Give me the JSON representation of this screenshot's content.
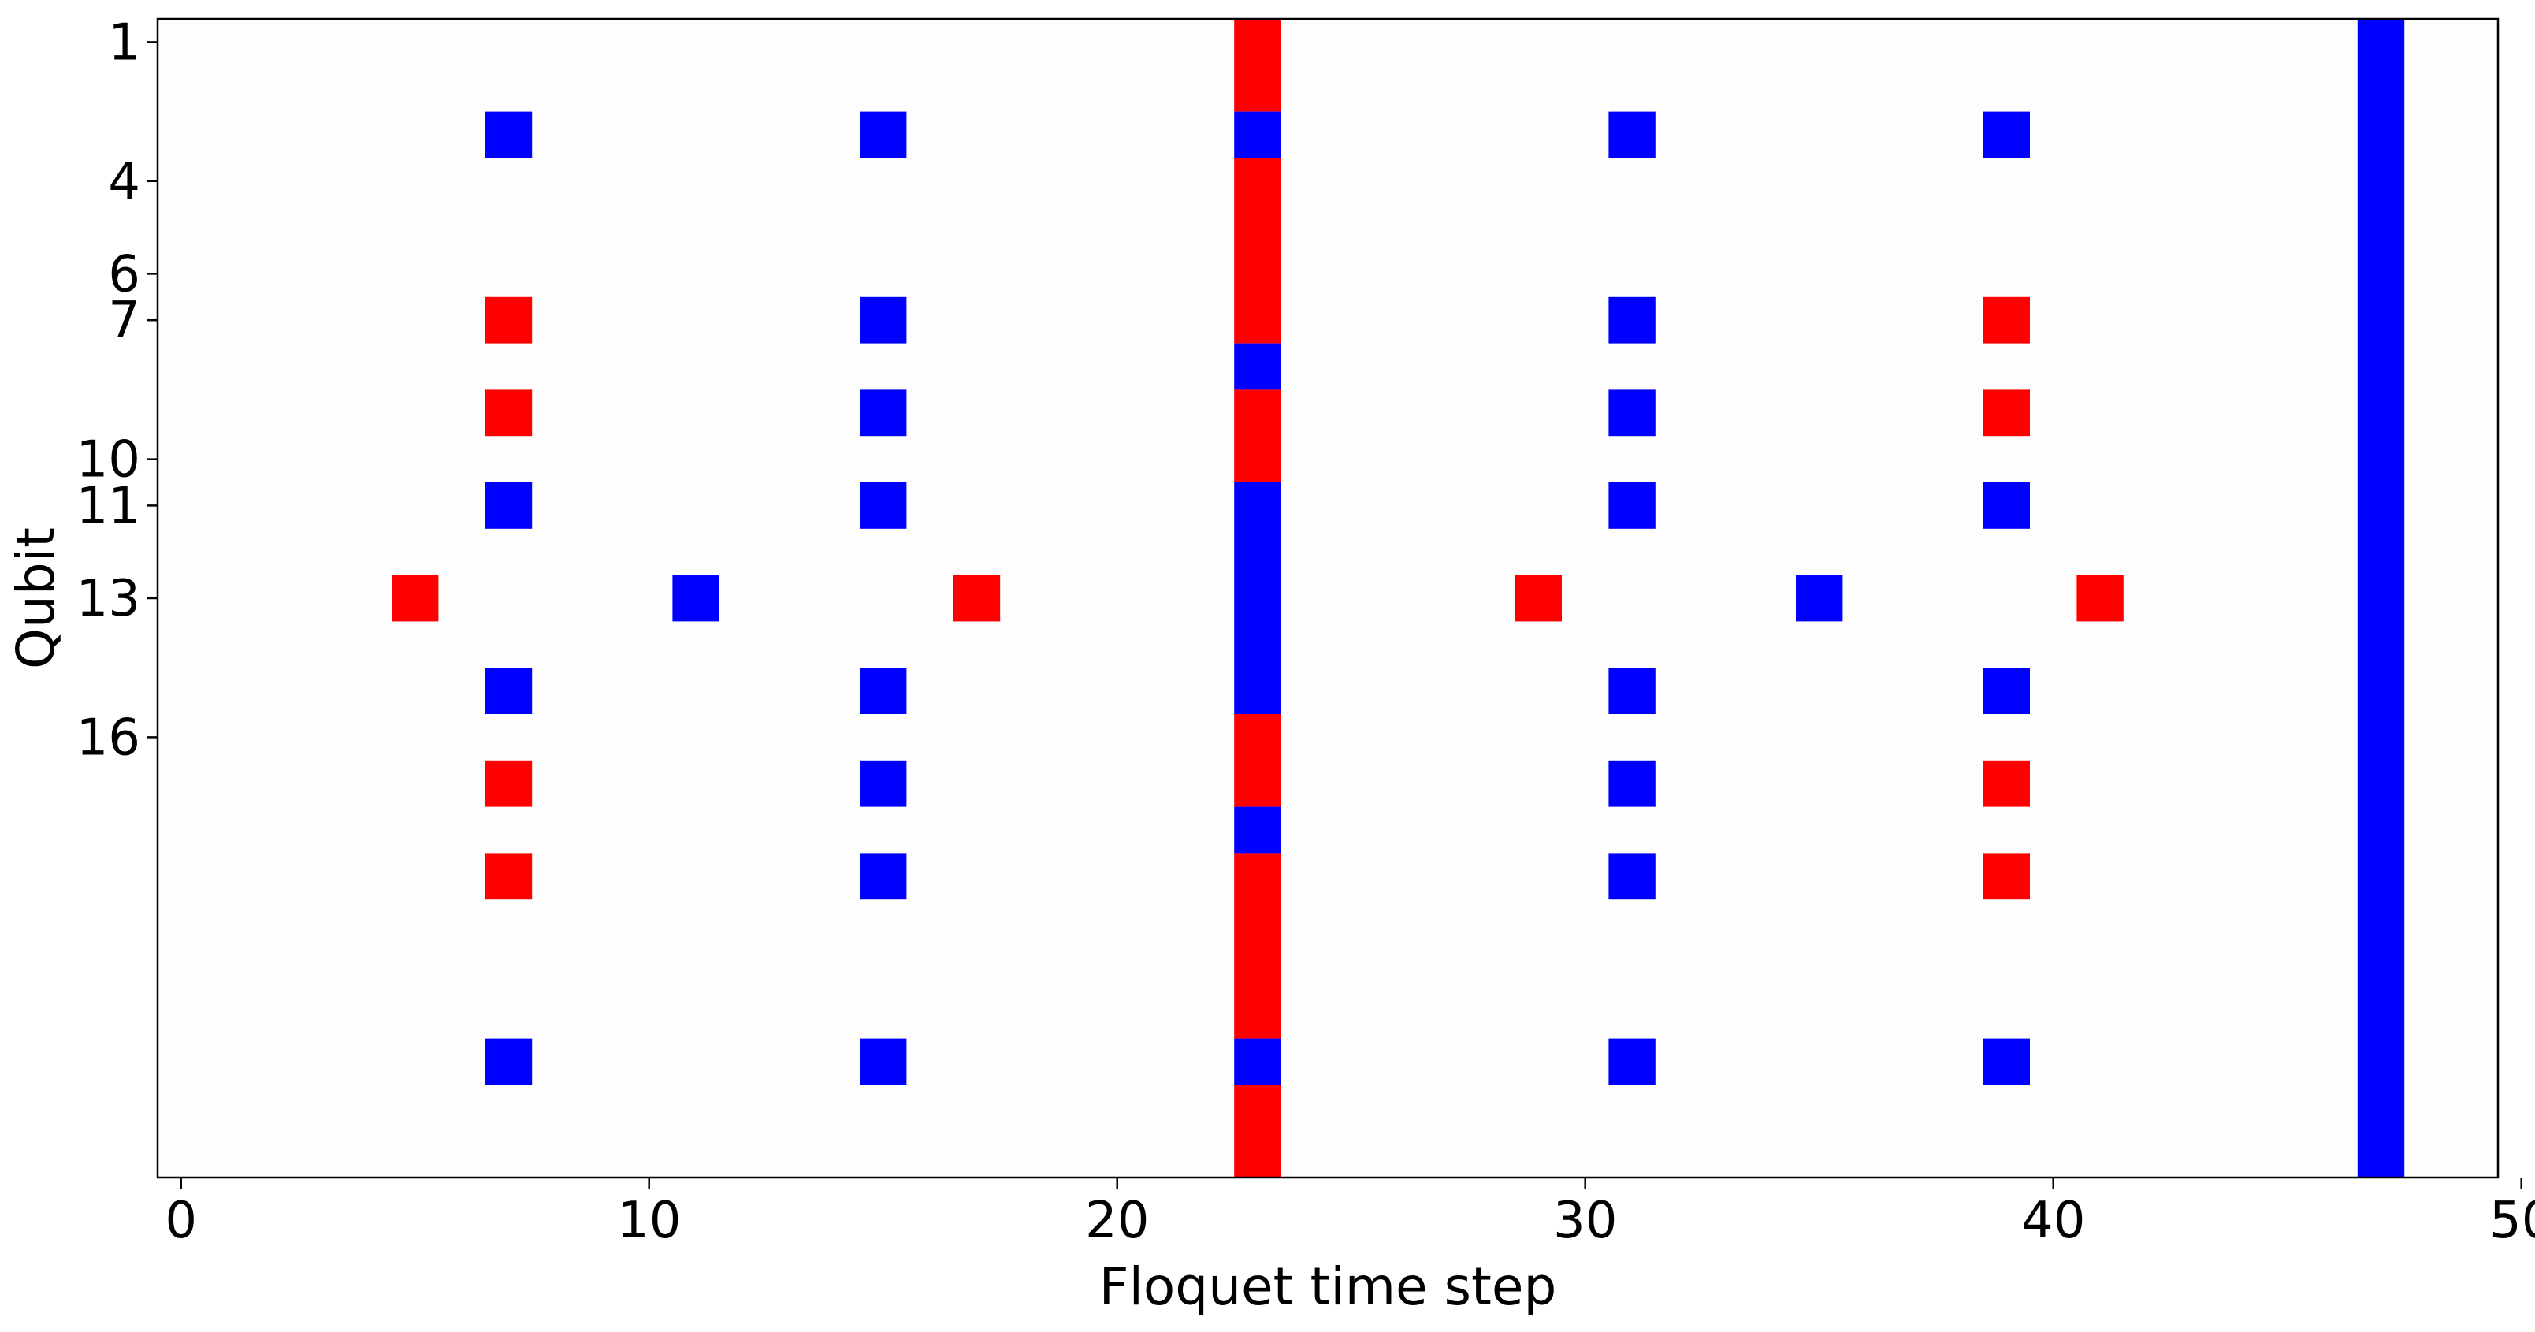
{
  "chart_data": {
    "type": "heatmap",
    "title": "",
    "xlabel": "Floquet time step",
    "ylabel": "Qubit",
    "xlim": [
      -0.5,
      49.5
    ],
    "ylim": [
      25.5,
      0.5
    ],
    "x_ticks": [
      0,
      10,
      20,
      30,
      40,
      50
    ],
    "y_ticks": [
      1,
      4,
      6,
      7,
      10,
      11,
      13,
      16
    ],
    "grid": false,
    "legend": "none",
    "colors": {
      "red": "#ff0000",
      "blue": "#0000ff",
      "background": "#fdfdfd"
    },
    "cells": [
      {
        "x": 7,
        "y": 3,
        "color": "blue"
      },
      {
        "x": 7,
        "y": 7,
        "color": "red"
      },
      {
        "x": 7,
        "y": 9,
        "color": "red"
      },
      {
        "x": 7,
        "y": 11,
        "color": "blue"
      },
      {
        "x": 7,
        "y": 15,
        "color": "blue"
      },
      {
        "x": 7,
        "y": 17,
        "color": "red"
      },
      {
        "x": 7,
        "y": 19,
        "color": "red"
      },
      {
        "x": 7,
        "y": 23,
        "color": "blue"
      },
      {
        "x": 15,
        "y": 3,
        "color": "blue"
      },
      {
        "x": 15,
        "y": 7,
        "color": "blue"
      },
      {
        "x": 15,
        "y": 9,
        "color": "blue"
      },
      {
        "x": 15,
        "y": 11,
        "color": "blue"
      },
      {
        "x": 15,
        "y": 15,
        "color": "blue"
      },
      {
        "x": 15,
        "y": 17,
        "color": "blue"
      },
      {
        "x": 15,
        "y": 19,
        "color": "blue"
      },
      {
        "x": 15,
        "y": 23,
        "color": "blue"
      },
      {
        "x": 31,
        "y": 3,
        "color": "blue"
      },
      {
        "x": 31,
        "y": 7,
        "color": "blue"
      },
      {
        "x": 31,
        "y": 9,
        "color": "blue"
      },
      {
        "x": 31,
        "y": 11,
        "color": "blue"
      },
      {
        "x": 31,
        "y": 15,
        "color": "blue"
      },
      {
        "x": 31,
        "y": 17,
        "color": "blue"
      },
      {
        "x": 31,
        "y": 19,
        "color": "blue"
      },
      {
        "x": 31,
        "y": 23,
        "color": "blue"
      },
      {
        "x": 39,
        "y": 3,
        "color": "blue"
      },
      {
        "x": 39,
        "y": 7,
        "color": "red"
      },
      {
        "x": 39,
        "y": 9,
        "color": "red"
      },
      {
        "x": 39,
        "y": 11,
        "color": "blue"
      },
      {
        "x": 39,
        "y": 15,
        "color": "blue"
      },
      {
        "x": 39,
        "y": 17,
        "color": "red"
      },
      {
        "x": 39,
        "y": 19,
        "color": "red"
      },
      {
        "x": 39,
        "y": 23,
        "color": "blue"
      },
      {
        "x": 5,
        "y": 13,
        "color": "red"
      },
      {
        "x": 11,
        "y": 13,
        "color": "blue"
      },
      {
        "x": 17,
        "y": 13,
        "color": "red"
      },
      {
        "x": 29,
        "y": 13,
        "color": "red"
      },
      {
        "x": 35,
        "y": 13,
        "color": "blue"
      },
      {
        "x": 41,
        "y": 13,
        "color": "red"
      }
    ],
    "column_bars": [
      {
        "x": 23,
        "y_start": 1,
        "y_end": 2,
        "color": "red"
      },
      {
        "x": 23,
        "y_start": 3,
        "y_end": 3,
        "color": "blue"
      },
      {
        "x": 23,
        "y_start": 4,
        "y_end": 7,
        "color": "red"
      },
      {
        "x": 23,
        "y_start": 8,
        "y_end": 8,
        "color": "blue"
      },
      {
        "x": 23,
        "y_start": 9,
        "y_end": 10,
        "color": "red"
      },
      {
        "x": 23,
        "y_start": 11,
        "y_end": 15,
        "color": "blue"
      },
      {
        "x": 23,
        "y_start": 16,
        "y_end": 17,
        "color": "red"
      },
      {
        "x": 23,
        "y_start": 18,
        "y_end": 18,
        "color": "blue"
      },
      {
        "x": 23,
        "y_start": 19,
        "y_end": 22,
        "color": "red"
      },
      {
        "x": 23,
        "y_start": 23,
        "y_end": 23,
        "color": "blue"
      },
      {
        "x": 23,
        "y_start": 24,
        "y_end": 25,
        "color": "red"
      },
      {
        "x": 47,
        "y_start": 1,
        "y_end": 25,
        "color": "blue"
      }
    ]
  }
}
